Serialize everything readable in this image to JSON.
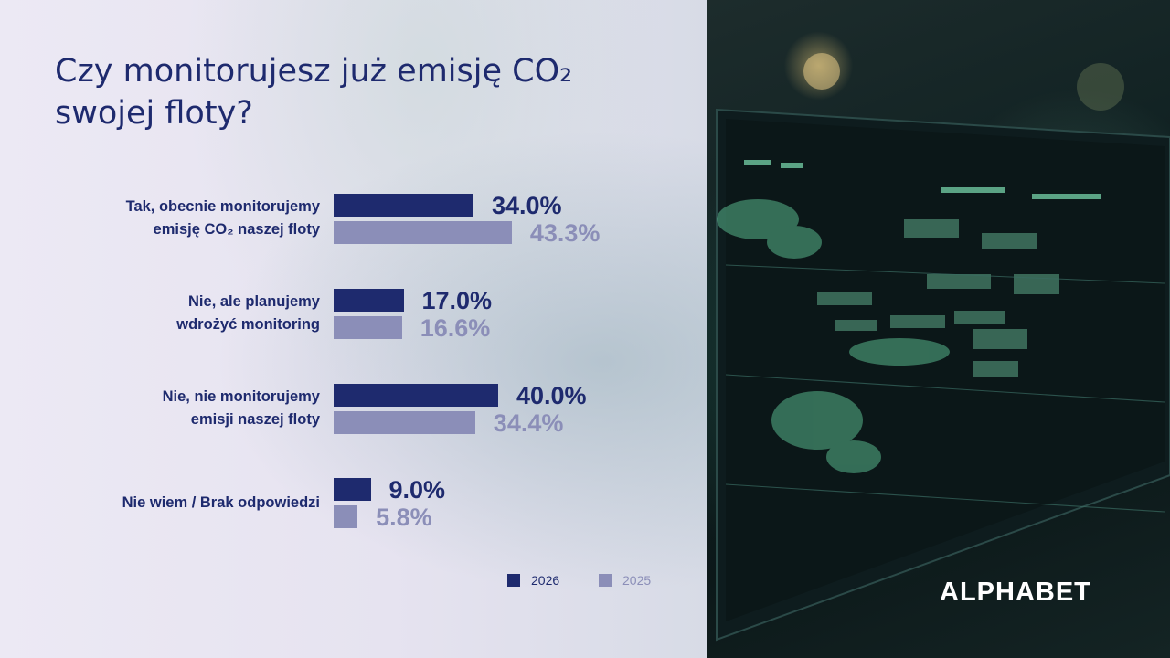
{
  "slide": {
    "title_line1": "Czy monitorujesz już emisję CO₂",
    "title_line2": "swojej floty?"
  },
  "brand": {
    "logo": "ALPHABET"
  },
  "colors": {
    "series_2026": "#1e2a6e",
    "series_2025": "#8b8eb8",
    "text": "#1e2a6e"
  },
  "chart_data": {
    "type": "bar",
    "orientation": "horizontal",
    "categories": [
      [
        "Tak, obecnie monitorujemy",
        "emisję CO₂ naszej floty"
      ],
      [
        "Nie, ale planujemy",
        "wdrożyć monitoring"
      ],
      [
        "Nie, nie monitorujemy",
        "emisji naszej floty"
      ],
      [
        "Nie wiem / Brak odpowiedzi"
      ]
    ],
    "series": [
      {
        "name": "2026",
        "values": [
          34.0,
          17.0,
          40.0,
          9.0
        ],
        "labels": [
          "34.0%",
          "17.0%",
          "40.0%",
          "9.0%"
        ]
      },
      {
        "name": "2025",
        "values": [
          43.3,
          16.6,
          34.4,
          5.8
        ],
        "labels": [
          "43.3%",
          "16.6%",
          "34.4%",
          "5.8%"
        ]
      }
    ],
    "legend": "bottom",
    "grid": false
  }
}
